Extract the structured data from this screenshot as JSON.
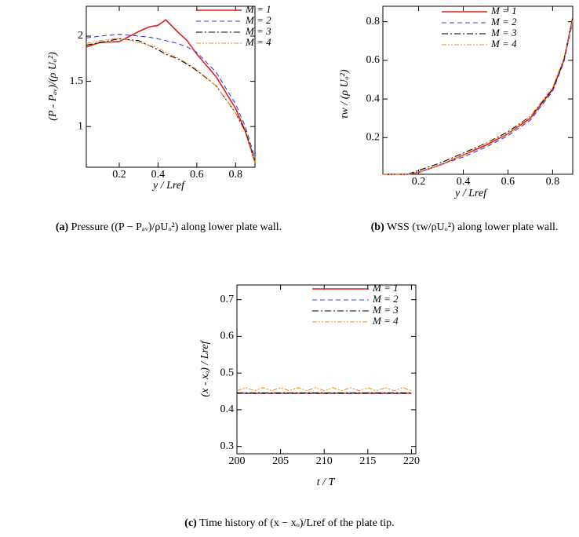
{
  "chart_data": [
    {
      "type": "line",
      "xlabel": "y / Lref",
      "ylabel": "(P - Pₐᵥ)/(ρ Uₒ²)",
      "x": [
        0.03,
        0.1,
        0.2,
        0.3,
        0.35,
        0.4,
        0.44,
        0.5,
        0.55,
        0.6,
        0.7,
        0.8,
        0.85,
        0.9
      ],
      "series": [
        {
          "name": "M = 1",
          "color": "#e0201b",
          "values": [
            1.88,
            1.93,
            1.94,
            2.05,
            2.1,
            2.12,
            2.18,
            2.05,
            1.95,
            1.8,
            1.55,
            1.2,
            0.95,
            0.6
          ]
        },
        {
          "name": "M = 2",
          "color": "#3a3ae0",
          "values": [
            1.98,
            2.0,
            2.02,
            2.0,
            1.99,
            1.97,
            1.95,
            1.92,
            1.88,
            1.82,
            1.6,
            1.25,
            1.0,
            0.65
          ]
        },
        {
          "name": "M = 3",
          "color": "#000000",
          "values": [
            1.9,
            1.93,
            1.97,
            1.95,
            1.9,
            1.85,
            1.8,
            1.75,
            1.69,
            1.62,
            1.45,
            1.15,
            0.95,
            0.62
          ]
        },
        {
          "name": "M = 4",
          "color": "#ff8c1a",
          "values": [
            1.92,
            1.95,
            1.98,
            1.93,
            1.9,
            1.87,
            1.82,
            1.76,
            1.7,
            1.63,
            1.45,
            1.15,
            0.93,
            0.6
          ]
        }
      ],
      "xlim": [
        0.03,
        0.9
      ],
      "ylim": [
        0.55,
        2.33
      ],
      "xticks": [
        0.2,
        0.4,
        0.6,
        0.8
      ],
      "yticks": [
        1,
        1.5,
        2
      ]
    },
    {
      "type": "line",
      "xlabel": "y / Lref",
      "ylabel": "τw / (ρ Uₒ²)",
      "x": [
        0.04,
        0.1,
        0.15,
        0.2,
        0.3,
        0.4,
        0.5,
        0.6,
        0.7,
        0.8,
        0.85,
        0.89
      ],
      "series": [
        {
          "name": "M = 1",
          "color": "#e0201b",
          "values": [
            0.01,
            0.01,
            0.01,
            0.02,
            0.06,
            0.11,
            0.16,
            0.22,
            0.3,
            0.45,
            0.6,
            0.82
          ]
        },
        {
          "name": "M = 2",
          "color": "#3a3ae0",
          "values": [
            0.01,
            0.01,
            0.01,
            0.02,
            0.06,
            0.1,
            0.15,
            0.21,
            0.29,
            0.44,
            0.59,
            0.8
          ]
        },
        {
          "name": "M = 3",
          "color": "#000000",
          "values": [
            0.01,
            0.01,
            0.01,
            0.03,
            0.07,
            0.12,
            0.17,
            0.23,
            0.31,
            0.45,
            0.6,
            0.82
          ]
        },
        {
          "name": "M = 4",
          "color": "#ff8c1a",
          "values": [
            0.01,
            0.01,
            0.01,
            0.02,
            0.06,
            0.11,
            0.17,
            0.22,
            0.31,
            0.46,
            0.61,
            0.81
          ]
        }
      ],
      "xlim": [
        0.04,
        0.89
      ],
      "ylim": [
        0.01,
        0.88
      ],
      "xticks": [
        0.2,
        0.4,
        0.6,
        0.8
      ],
      "yticks": [
        0.2,
        0.4,
        0.6,
        0.8
      ]
    },
    {
      "type": "line",
      "xlabel": "t / T",
      "ylabel": "(x - xₒ) / Lref",
      "x": [
        200,
        201,
        202,
        203,
        204,
        205,
        206,
        207,
        208,
        209,
        210,
        211,
        212,
        213,
        214,
        215,
        216,
        217,
        218,
        219,
        220
      ],
      "series": [
        {
          "name": "M = 1",
          "color": "#e0201b",
          "values": [
            0.445,
            0.445,
            0.445,
            0.445,
            0.445,
            0.445,
            0.445,
            0.445,
            0.445,
            0.445,
            0.445,
            0.445,
            0.445,
            0.445,
            0.445,
            0.445,
            0.445,
            0.445,
            0.445,
            0.445,
            0.445
          ]
        },
        {
          "name": "M = 2",
          "color": "#3a3ae0",
          "values": [
            0.444,
            0.444,
            0.444,
            0.444,
            0.444,
            0.444,
            0.444,
            0.444,
            0.444,
            0.444,
            0.444,
            0.444,
            0.444,
            0.444,
            0.444,
            0.444,
            0.444,
            0.444,
            0.444,
            0.444,
            0.444
          ]
        },
        {
          "name": "M = 3",
          "color": "#000000",
          "values": [
            0.446,
            0.446,
            0.446,
            0.446,
            0.446,
            0.446,
            0.446,
            0.446,
            0.446,
            0.446,
            0.446,
            0.446,
            0.446,
            0.446,
            0.446,
            0.446,
            0.446,
            0.446,
            0.446,
            0.446,
            0.446
          ]
        },
        {
          "name": "M = 4",
          "color": "#ff8c1a",
          "values": [
            0.452,
            0.46,
            0.452,
            0.46,
            0.452,
            0.46,
            0.452,
            0.46,
            0.452,
            0.46,
            0.452,
            0.46,
            0.452,
            0.46,
            0.452,
            0.46,
            0.452,
            0.46,
            0.452,
            0.46,
            0.452
          ]
        }
      ],
      "xlim": [
        200,
        220.5
      ],
      "ylim": [
        0.28,
        0.74
      ],
      "xticks": [
        200,
        205,
        210,
        215,
        220
      ],
      "yticks": [
        0.3,
        0.4,
        0.5,
        0.6,
        0.7
      ]
    }
  ],
  "captions": [
    {
      "label": "(a)",
      "text": "Pressure ((P − Pₐᵥ)/ρUₒ²) along lower plate wall."
    },
    {
      "label": "(b)",
      "text": "WSS (τw/ρUₒ²) along lower plate wall."
    },
    {
      "label": "(c)",
      "text": "Time history of (x − xₒ)/Lref of the plate tip."
    }
  ]
}
